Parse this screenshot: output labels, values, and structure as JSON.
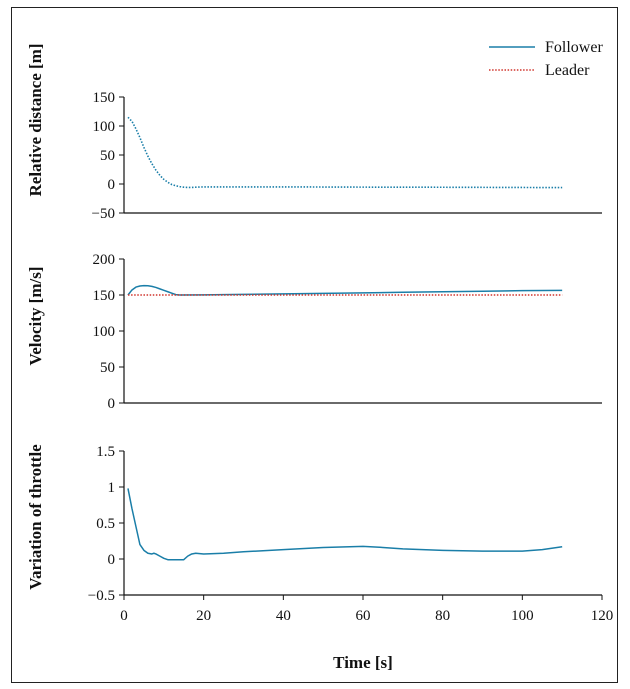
{
  "legend": [
    {
      "label": "Follower",
      "color": "#1a7ea8",
      "style": "solid"
    },
    {
      "label": "Leader",
      "color": "#d0342c",
      "style": "dotted"
    }
  ],
  "colors": {
    "follower": "#1a7ea8",
    "leader": "#d0342c"
  },
  "chart_data": [
    {
      "type": "line",
      "title": "",
      "ylabel": "Relative distance [m]",
      "xlabel": "",
      "xlim": [
        0,
        120
      ],
      "ylim": [
        -50,
        150
      ],
      "yticks": [
        -50,
        0,
        50,
        100,
        150
      ],
      "ytick_labels": [
        "−50",
        "0",
        "50",
        "100",
        "150"
      ],
      "grid": false,
      "series": [
        {
          "color": "#1a7ea8",
          "style": "dotted",
          "x": [
            1,
            2,
            3,
            4,
            5,
            6,
            7,
            8,
            9,
            10,
            11,
            12,
            13,
            14,
            15,
            16,
            17,
            18,
            20,
            30,
            40,
            50,
            60,
            70,
            80,
            90,
            100,
            110
          ],
          "y": [
            115,
            108,
            95,
            80,
            63,
            48,
            35,
            24,
            15,
            8,
            3,
            -1,
            -3,
            -4.5,
            -5.5,
            -6,
            -6,
            -5.5,
            -5,
            -5,
            -5,
            -5.2,
            -5.4,
            -5.5,
            -5.6,
            -5.8,
            -6,
            -6.2
          ]
        }
      ]
    },
    {
      "type": "line",
      "title": "",
      "ylabel": "Velocity [m/s]",
      "xlabel": "",
      "xlim": [
        0,
        120
      ],
      "ylim": [
        0,
        200
      ],
      "yticks": [
        0,
        50,
        100,
        150,
        200
      ],
      "ytick_labels": [
        "0",
        "50",
        "100",
        "150",
        "200"
      ],
      "grid": false,
      "series": [
        {
          "name": "Follower",
          "color": "#1a7ea8",
          "style": "solid",
          "x": [
            1,
            2,
            3,
            4,
            5,
            6,
            7,
            8,
            9,
            10,
            11,
            12,
            13,
            14,
            20,
            30,
            40,
            50,
            60,
            70,
            80,
            90,
            100,
            110
          ],
          "y": [
            150,
            157,
            161,
            162.5,
            163,
            162.8,
            162,
            160.5,
            158.5,
            156.5,
            154.5,
            152.5,
            150.5,
            150,
            150.2,
            150.8,
            151.5,
            152.2,
            153,
            153.8,
            154.5,
            155.2,
            156,
            156.5
          ]
        },
        {
          "name": "Leader",
          "color": "#d0342c",
          "style": "dotted",
          "x": [
            1,
            110
          ],
          "y": [
            150,
            150
          ]
        }
      ]
    },
    {
      "type": "line",
      "title": "",
      "ylabel": "Variation of throttle",
      "xlabel": "Time [s]",
      "xlim": [
        0,
        120
      ],
      "ylim": [
        -0.5,
        1.5
      ],
      "xticks": [
        0,
        20,
        40,
        60,
        80,
        100,
        120
      ],
      "xtick_labels": [
        "0",
        "20",
        "40",
        "60",
        "80",
        "100",
        "120"
      ],
      "yticks": [
        -0.5,
        0,
        0.5,
        1,
        1.5
      ],
      "ytick_labels": [
        "−0.5",
        "0",
        "0.5",
        "1",
        "1.5"
      ],
      "grid": false,
      "series": [
        {
          "color": "#1a7ea8",
          "style": "solid",
          "x": [
            1,
            2,
            3,
            4,
            5,
            6,
            7,
            7.5,
            8,
            9,
            10,
            11,
            12,
            13,
            14,
            15,
            16,
            17,
            18,
            20,
            25,
            30,
            40,
            50,
            60,
            65,
            70,
            80,
            90,
            100,
            105,
            110
          ],
          "y": [
            0.98,
            0.7,
            0.45,
            0.2,
            0.12,
            0.08,
            0.07,
            0.08,
            0.07,
            0.04,
            0.01,
            -0.01,
            -0.01,
            -0.01,
            -0.01,
            -0.01,
            0.04,
            0.07,
            0.08,
            0.07,
            0.08,
            0.1,
            0.13,
            0.16,
            0.175,
            0.16,
            0.14,
            0.12,
            0.11,
            0.11,
            0.13,
            0.17
          ]
        }
      ]
    }
  ]
}
